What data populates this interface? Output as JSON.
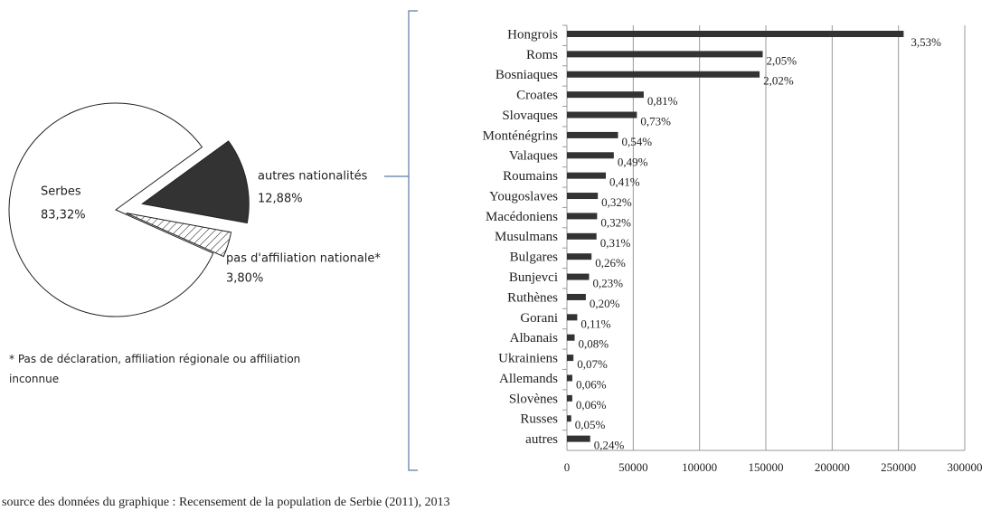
{
  "chart_data": [
    {
      "type": "pie",
      "categories": [
        "Serbes",
        "autres nationalités",
        "pas d'affiliation nationale*"
      ],
      "values": [
        83.32,
        12.88,
        3.8
      ],
      "value_labels": [
        "83,32%",
        "12,88%",
        "3,80%"
      ],
      "colors": [
        "#ffffff",
        "#333333",
        "#ffffff"
      ],
      "hatched": [
        false,
        false,
        true
      ],
      "note": "* Pas de déclaration, affiliation régionale ou affiliation inconnue"
    },
    {
      "type": "hbar",
      "categories": [
        "Hongrois",
        "Roms",
        "Bosniaques",
        "Croates",
        "Slovaques",
        "Monténégrins",
        "Valaques",
        "Roumains",
        "Yougoslaves",
        "Macédoniens",
        "Musulmans",
        "Bulgares",
        "Bunjevci",
        "Ruthènes",
        "Gorani",
        "Albanais",
        "Ukrainiens",
        "Allemands",
        "Slovènes",
        "Russes",
        "autres"
      ],
      "values": [
        253899,
        147604,
        145278,
        57900,
        52750,
        38527,
        35330,
        29332,
        23303,
        22755,
        22301,
        18543,
        16706,
        14246,
        7767,
        5809,
        4903,
        4064,
        4033,
        3247,
        17558
      ],
      "shares": [
        3.53,
        2.05,
        2.02,
        0.81,
        0.73,
        0.54,
        0.49,
        0.41,
        0.32,
        0.32,
        0.31,
        0.26,
        0.23,
        0.2,
        0.11,
        0.08,
        0.07,
        0.06,
        0.06,
        0.05,
        0.24
      ],
      "share_labels": [
        "3,53%",
        "2,05%",
        "2,02%",
        "0,81%",
        "0,73%",
        "0,54%",
        "0,49%",
        "0,41%",
        "0,32%",
        "0,32%",
        "0,31%",
        "0,26%",
        "0,23%",
        "0,20%",
        "0,11%",
        "0,08%",
        "0,07%",
        "0,06%",
        "0,06%",
        "0,05%",
        "0,24%"
      ],
      "color": "#333333",
      "xlim": [
        0,
        300000
      ],
      "xticks": [
        0,
        50000,
        100000,
        150000,
        200000,
        250000,
        300000
      ],
      "grid": true,
      "source": "source des données du graphique : Recensement de la population de Serbie (2011), 2013"
    }
  ]
}
